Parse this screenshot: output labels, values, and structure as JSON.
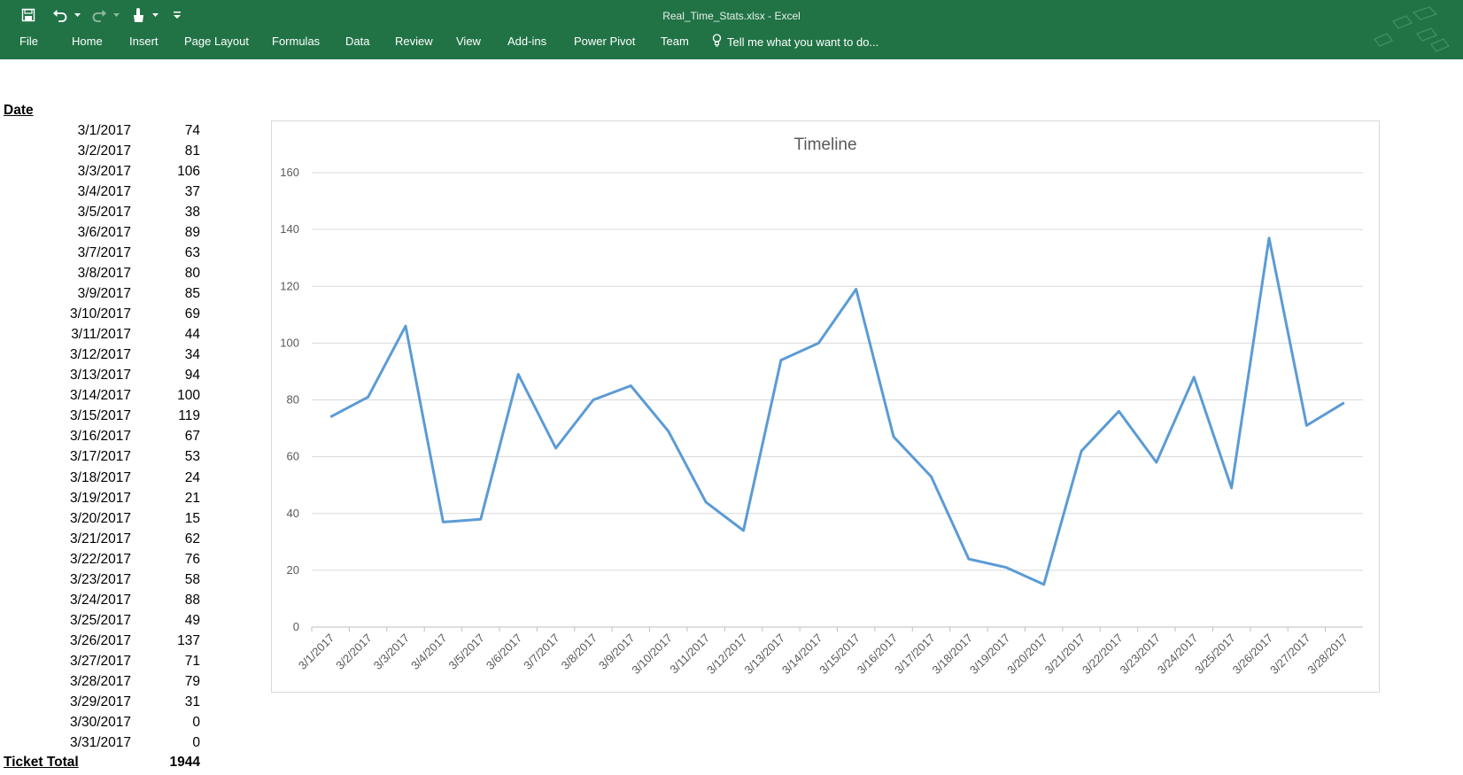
{
  "window": {
    "title": "Real_Time_Stats.xlsx - Excel"
  },
  "ribbon": {
    "tabs": [
      "File",
      "Home",
      "Insert",
      "Page Layout",
      "Formulas",
      "Data",
      "Review",
      "View",
      "Add-ins",
      "Power Pivot",
      "Team"
    ],
    "tell_me": "Tell me what you want to do..."
  },
  "sheet": {
    "date_header": "Date",
    "rows": [
      {
        "date": "3/1/2017",
        "value": "74"
      },
      {
        "date": "3/2/2017",
        "value": "81"
      },
      {
        "date": "3/3/2017",
        "value": "106"
      },
      {
        "date": "3/4/2017",
        "value": "37"
      },
      {
        "date": "3/5/2017",
        "value": "38"
      },
      {
        "date": "3/6/2017",
        "value": "89"
      },
      {
        "date": "3/7/2017",
        "value": "63"
      },
      {
        "date": "3/8/2017",
        "value": "80"
      },
      {
        "date": "3/9/2017",
        "value": "85"
      },
      {
        "date": "3/10/2017",
        "value": "69"
      },
      {
        "date": "3/11/2017",
        "value": "44"
      },
      {
        "date": "3/12/2017",
        "value": "34"
      },
      {
        "date": "3/13/2017",
        "value": "94"
      },
      {
        "date": "3/14/2017",
        "value": "100"
      },
      {
        "date": "3/15/2017",
        "value": "119"
      },
      {
        "date": "3/16/2017",
        "value": "67"
      },
      {
        "date": "3/17/2017",
        "value": "53"
      },
      {
        "date": "3/18/2017",
        "value": "24"
      },
      {
        "date": "3/19/2017",
        "value": "21"
      },
      {
        "date": "3/20/2017",
        "value": "15"
      },
      {
        "date": "3/21/2017",
        "value": "62"
      },
      {
        "date": "3/22/2017",
        "value": "76"
      },
      {
        "date": "3/23/2017",
        "value": "58"
      },
      {
        "date": "3/24/2017",
        "value": "88"
      },
      {
        "date": "3/25/2017",
        "value": "49"
      },
      {
        "date": "3/26/2017",
        "value": "137"
      },
      {
        "date": "3/27/2017",
        "value": "71"
      },
      {
        "date": "3/28/2017",
        "value": "79"
      },
      {
        "date": "3/29/2017",
        "value": "31"
      },
      {
        "date": "3/30/2017",
        "value": "0"
      },
      {
        "date": "3/31/2017",
        "value": "0"
      }
    ],
    "total_label": "Ticket Total",
    "total_value": "1944"
  },
  "chart_data": {
    "type": "line",
    "title": "Timeline",
    "categories": [
      "3/1/2017",
      "3/2/2017",
      "3/3/2017",
      "3/4/2017",
      "3/5/2017",
      "3/6/2017",
      "3/7/2017",
      "3/8/2017",
      "3/9/2017",
      "3/10/2017",
      "3/11/2017",
      "3/12/2017",
      "3/13/2017",
      "3/14/2017",
      "3/15/2017",
      "3/16/2017",
      "3/17/2017",
      "3/18/2017",
      "3/19/2017",
      "3/20/2017",
      "3/21/2017",
      "3/22/2017",
      "3/23/2017",
      "3/24/2017",
      "3/25/2017",
      "3/26/2017",
      "3/27/2017",
      "3/28/2017"
    ],
    "values": [
      74,
      81,
      106,
      37,
      38,
      89,
      63,
      80,
      85,
      69,
      44,
      34,
      94,
      100,
      119,
      67,
      53,
      24,
      21,
      15,
      62,
      76,
      58,
      88,
      49,
      137,
      71,
      79
    ],
    "yticks": [
      0,
      20,
      40,
      60,
      80,
      100,
      120,
      140,
      160
    ],
    "ylim": [
      0,
      160
    ],
    "xlabel": "",
    "ylabel": "",
    "grid": true,
    "legend": "none",
    "line_color": "#5b9bd5",
    "grid_color": "#d9d9d9"
  }
}
